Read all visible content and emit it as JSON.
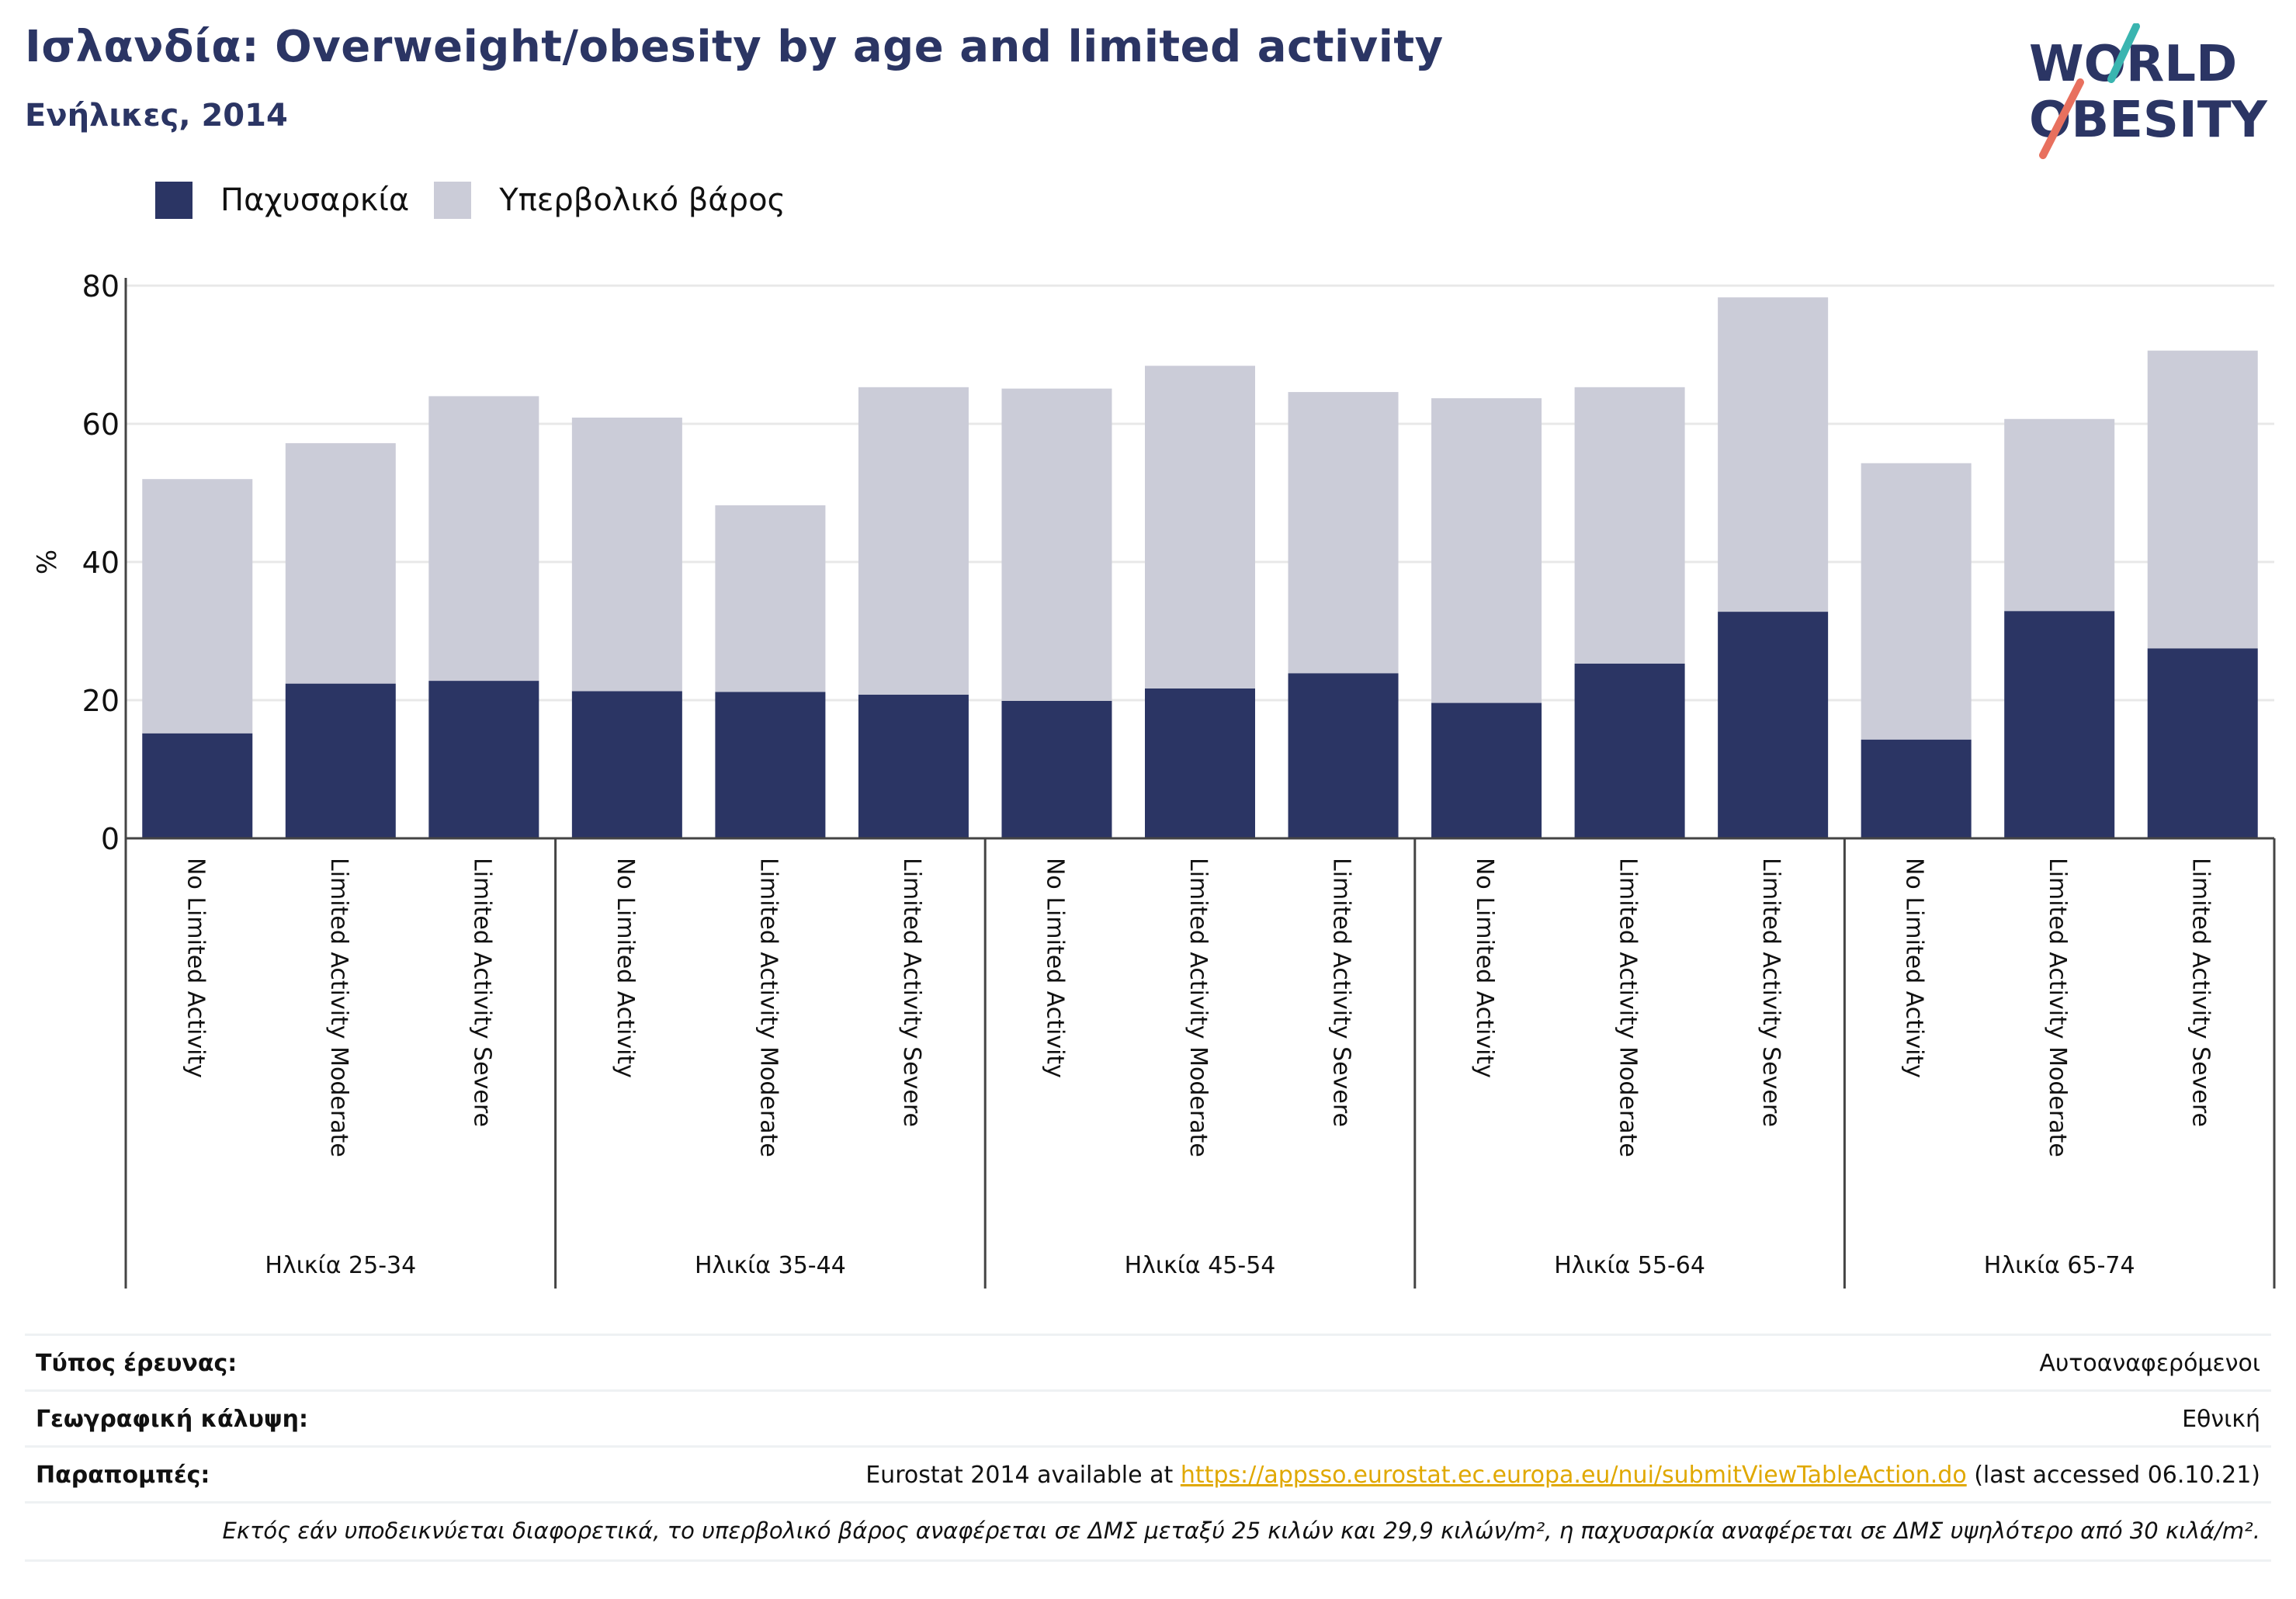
{
  "header": {
    "title": "Ισλανδία: Overweight/obesity by age and limited activity",
    "subtitle": "Ενήλικες, 2014"
  },
  "logo": {
    "line1": "WORLD",
    "line2": "OBESITY"
  },
  "colors": {
    "obesity": "#2b3564",
    "overweight": "#cbccd8",
    "title": "#2b3564",
    "link": "#e0a800"
  },
  "legend": [
    {
      "label": "Παχυσαρκία",
      "color": "#2b3564"
    },
    {
      "label": "Υπερβολικό βάρος",
      "color": "#cbccd8"
    }
  ],
  "chart_data": {
    "type": "bar",
    "stacked": true,
    "ylabel": "%",
    "ylim": [
      0,
      80
    ],
    "yticks": [
      0,
      20,
      40,
      60,
      80
    ],
    "grid": true,
    "legend_position": "top-left",
    "groups": [
      "Ηλικία 25-34",
      "Ηλικία 35-44",
      "Ηλικία 45-54",
      "Ηλικία 55-64",
      "Ηλικία 65-74"
    ],
    "categories": [
      "No Limited Activity",
      "Limited Activity Moderate",
      "Limited Activity Severe",
      "No Limited Activity",
      "Limited Activity Moderate",
      "Limited Activity Severe",
      "No Limited Activity",
      "Limited Activity Moderate",
      "Limited Activity Severe",
      "No Limited Activity",
      "Limited Activity Moderate",
      "Limited Activity Severe",
      "No Limited Activity",
      "Limited Activity Moderate",
      "Limited Activity Severe"
    ],
    "series": [
      {
        "name": "Παχυσαρκία",
        "values": [
          15.2,
          22.4,
          22.8,
          21.3,
          21.2,
          20.8,
          19.9,
          21.7,
          23.9,
          19.6,
          25.3,
          32.8,
          14.3,
          32.9,
          27.5
        ]
      },
      {
        "name": "Υπερβολικό βάρος",
        "values": [
          36.8,
          34.8,
          41.2,
          39.6,
          27.0,
          44.5,
          45.2,
          46.7,
          40.7,
          44.1,
          40.0,
          45.5,
          40.0,
          27.8,
          43.1
        ]
      }
    ]
  },
  "info": {
    "survey_label": "Τύπος έρευνας:",
    "survey_value": "Αυτοαναφερόμενοι",
    "coverage_label": "Γεωγραφική κάλυψη:",
    "coverage_value": "Εθνική",
    "refs_label": "Παραπομπές:",
    "refs_prefix": "Eurostat 2014 available at ",
    "refs_link": "https://appsso.eurostat.ec.europa.eu/nui/submitViewTableAction.do",
    "refs_suffix": " (last accessed 06.10.21)",
    "note": "Εκτός εάν υποδεικνύεται διαφορετικά, το υπερβολικό βάρος αναφέρεται σε ΔΜΣ μεταξύ 25 κιλών και 29,9 κιλών/m², η παχυσαρκία αναφέρεται σε ΔΜΣ υψηλότερο από 30 κιλά/m²."
  }
}
